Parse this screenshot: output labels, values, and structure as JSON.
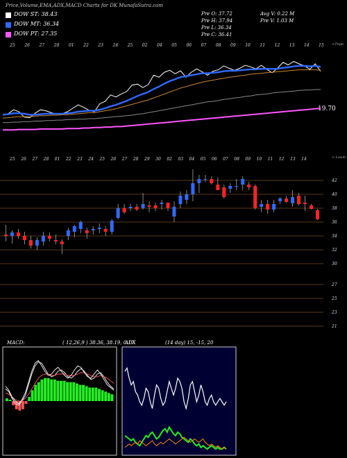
{
  "header": {
    "title": "Price,Volume,EMA,ADX,MACD Charts for DK MunafaSutra.com",
    "legend": [
      {
        "label": "DOW ST: 38.43",
        "color": "#ffffff"
      },
      {
        "label": "DOW MT: 36.34",
        "color": "#2f6bff"
      },
      {
        "label": "DOW PT: 27.35",
        "color": "#ff55ff"
      }
    ],
    "ohlc": {
      "open": "Pre  O: 37.72",
      "high": "Pre  H: 37.94",
      "low": "Pre  L: 36.34",
      "close": "Pre  C: 36.41"
    },
    "volume": {
      "avg": "Avg V: 0.22  M",
      "pre": "Pre  V: 1.03  M"
    }
  },
  "colors": {
    "up": "#2f6bff",
    "down": "#ff2222",
    "ema_short": "#ffffff",
    "ema_mid": "#2f6bff",
    "ema_long": "#ff55ff",
    "grid": "#7a4a1a",
    "adx": "#ffffff",
    "di_plus": "#22ee22",
    "di_minus": "#ff8800",
    "macd_hist": "#22ee22",
    "signal": "#ff5555"
  },
  "chart_data": [
    {
      "type": "line",
      "name": "ema-panel",
      "corner_label": "<Tnpe",
      "date_labels": [
        "25",
        "26",
        "27",
        "28",
        "01",
        "22",
        "23",
        "24",
        "25",
        "02",
        "04",
        "05",
        "06",
        "07",
        "08",
        "09",
        "10",
        "11",
        "12",
        "13",
        "14",
        "15"
      ],
      "value_label": "19.70",
      "series": [
        {
          "name": "price",
          "values": [
            22.5,
            22.8,
            23.6,
            23.2,
            22.1,
            22.0,
            22.9,
            23.6,
            23.4,
            23.0,
            22.7,
            22.8,
            23.2,
            23.9,
            24.6,
            24.1,
            23.5,
            23.2,
            24.8,
            25.3,
            26.6,
            26.2,
            26.8,
            27.3,
            28.6,
            28.8,
            28.1,
            28.7,
            30.6,
            30.2,
            31.2,
            31.6,
            30.9,
            31.5,
            30.2,
            31.2,
            31.9,
            31.3,
            30.6,
            31.4,
            31.7,
            32.5,
            32.0,
            31.6,
            32.0,
            32.6,
            32.3,
            31.9,
            32.6,
            31.8,
            31.1,
            32.0,
            33.2,
            32.7,
            33.4,
            32.9,
            32.5,
            31.8,
            32.9,
            31.4
          ]
        },
        {
          "name": "ema-short",
          "values": [
            22.6,
            22.7,
            22.9,
            22.9,
            22.8,
            22.6,
            22.6,
            22.7,
            22.8,
            22.8,
            22.8,
            22.8,
            22.9,
            23.0,
            23.2,
            23.3,
            23.4,
            23.4,
            23.6,
            23.9,
            24.3,
            24.6,
            25.0,
            25.4,
            25.9,
            26.4,
            26.8,
            27.2,
            27.8,
            28.3,
            28.9,
            29.4,
            29.8,
            30.2,
            30.4,
            30.6,
            30.8,
            31.0,
            31.0,
            31.1,
            31.2,
            31.4,
            31.5,
            31.5,
            31.6,
            31.7,
            31.8,
            31.8,
            31.9,
            31.9,
            31.9,
            31.9,
            32.1,
            32.2,
            32.4,
            32.5,
            32.5,
            32.4,
            32.5,
            32.3
          ]
        },
        {
          "name": "ema-mid",
          "values": [
            21.9,
            22.0,
            22.1,
            22.2,
            22.2,
            22.2,
            22.3,
            22.4,
            22.4,
            22.5,
            22.5,
            22.6,
            22.6,
            22.7,
            22.8,
            22.9,
            23.0,
            23.0,
            23.2,
            23.4,
            23.6,
            23.8,
            24.1,
            24.4,
            24.7,
            25.0,
            25.3,
            25.6,
            26.0,
            26.4,
            26.8,
            27.2,
            27.6,
            28.0,
            28.3,
            28.6,
            28.9,
            29.2,
            29.4,
            29.6,
            29.8,
            30.0,
            30.2,
            30.3,
            30.5,
            30.6,
            30.8,
            30.9,
            31.0,
            31.1,
            31.2,
            31.3,
            31.4,
            31.5,
            31.6,
            31.7,
            31.7,
            31.7,
            31.7,
            31.6
          ]
        },
        {
          "name": "ema-long",
          "values": [
            21.0,
            21.0,
            21.1,
            21.1,
            21.2,
            21.2,
            21.3,
            21.3,
            21.4,
            21.4,
            21.5,
            21.5,
            21.6,
            21.6,
            21.7,
            21.7,
            21.8,
            21.8,
            21.9,
            22.0,
            22.1,
            22.2,
            22.3,
            22.4,
            22.5,
            22.7,
            22.8,
            23.0,
            23.2,
            23.4,
            23.6,
            23.8,
            24.0,
            24.2,
            24.4,
            24.6,
            24.8,
            25.0,
            25.2,
            25.3,
            25.5,
            25.7,
            25.8,
            26.0,
            26.1,
            26.3,
            26.4,
            26.6,
            26.7,
            26.8,
            27.0,
            27.1,
            27.2,
            27.3,
            27.4,
            27.5,
            27.6,
            27.6,
            27.7,
            27.7
          ]
        },
        {
          "name": "ema-pt",
          "values": [
            19.5,
            19.5,
            19.5,
            19.6,
            19.6,
            19.6,
            19.6,
            19.7,
            19.7,
            19.7,
            19.7,
            19.7,
            19.8,
            19.8,
            19.8,
            19.9,
            19.9,
            20.0,
            20.0,
            20.1,
            20.1,
            20.2,
            20.2,
            20.3,
            20.4,
            20.5,
            20.6,
            20.7,
            20.8,
            20.9,
            21.0,
            21.1,
            21.2,
            21.3,
            21.4,
            21.5,
            21.6,
            21.7,
            21.8,
            21.9,
            22.0,
            22.1,
            22.2,
            22.3,
            22.4,
            22.5,
            22.6,
            22.7,
            22.8,
            22.9,
            23.0,
            23.1,
            23.2,
            23.3,
            23.4,
            23.5,
            23.6,
            23.7,
            23.8,
            23.9
          ]
        }
      ],
      "ylim": [
        18,
        36
      ]
    },
    {
      "type": "candlestick",
      "name": "price-panel",
      "corner_label": "< Loum",
      "date_labels": [
        "25",
        "26",
        "27",
        "28",
        "01",
        "22",
        "23",
        "24",
        "25",
        "26",
        "27",
        "28",
        "29",
        "30",
        "02",
        "03",
        "04",
        "05",
        "06",
        "07",
        "08",
        "09",
        "10",
        "11",
        "12",
        "13",
        "14"
      ],
      "y_ticks": [
        42,
        40,
        38,
        36,
        34,
        32,
        30,
        27,
        25,
        23,
        21
      ],
      "ylim": [
        20,
        45
      ],
      "candles": [
        {
          "o": 34.2,
          "h": 35.6,
          "l": 33.2,
          "c": 34.0
        },
        {
          "o": 34.0,
          "h": 34.8,
          "l": 32.9,
          "c": 34.5
        },
        {
          "o": 34.5,
          "h": 35.0,
          "l": 33.6,
          "c": 34.0
        },
        {
          "o": 34.0,
          "h": 34.6,
          "l": 32.8,
          "c": 33.4
        },
        {
          "o": 33.4,
          "h": 34.0,
          "l": 32.2,
          "c": 32.6
        },
        {
          "o": 32.6,
          "h": 33.8,
          "l": 32.0,
          "c": 33.4
        },
        {
          "o": 33.2,
          "h": 34.6,
          "l": 32.6,
          "c": 34.0
        },
        {
          "o": 34.0,
          "h": 34.5,
          "l": 33.2,
          "c": 33.6
        },
        {
          "o": 33.4,
          "h": 34.2,
          "l": 32.8,
          "c": 33.2
        },
        {
          "o": 33.2,
          "h": 33.5,
          "l": 31.4,
          "c": 32.8
        },
        {
          "o": 34.0,
          "h": 35.2,
          "l": 33.4,
          "c": 34.8
        },
        {
          "o": 34.6,
          "h": 35.6,
          "l": 33.8,
          "c": 35.4
        },
        {
          "o": 35.0,
          "h": 36.2,
          "l": 34.4,
          "c": 36.0
        },
        {
          "o": 34.8,
          "h": 35.2,
          "l": 33.6,
          "c": 34.4
        },
        {
          "o": 34.8,
          "h": 35.4,
          "l": 34.2,
          "c": 35.0
        },
        {
          "o": 35.0,
          "h": 35.8,
          "l": 34.4,
          "c": 35.2
        },
        {
          "o": 35.0,
          "h": 35.4,
          "l": 34.0,
          "c": 34.6
        },
        {
          "o": 34.6,
          "h": 36.4,
          "l": 34.2,
          "c": 36.2
        },
        {
          "o": 36.6,
          "h": 38.6,
          "l": 36.4,
          "c": 38.0
        },
        {
          "o": 38.0,
          "h": 38.6,
          "l": 37.2,
          "c": 37.4
        },
        {
          "o": 38.0,
          "h": 38.6,
          "l": 37.6,
          "c": 38.2
        },
        {
          "o": 38.2,
          "h": 38.6,
          "l": 37.6,
          "c": 37.8
        },
        {
          "o": 38.0,
          "h": 40.2,
          "l": 37.8,
          "c": 38.6
        },
        {
          "o": 38.4,
          "h": 39.0,
          "l": 37.4,
          "c": 38.2
        },
        {
          "o": 38.4,
          "h": 38.8,
          "l": 37.6,
          "c": 38.0
        },
        {
          "o": 38.6,
          "h": 39.2,
          "l": 37.8,
          "c": 38.8
        },
        {
          "o": 38.8,
          "h": 38.8,
          "l": 37.6,
          "c": 38.0
        },
        {
          "o": 36.8,
          "h": 39.0,
          "l": 36.0,
          "c": 38.2
        },
        {
          "o": 38.6,
          "h": 40.4,
          "l": 38.0,
          "c": 39.8
        },
        {
          "o": 39.2,
          "h": 40.6,
          "l": 38.6,
          "c": 40.0
        },
        {
          "o": 40.0,
          "h": 43.6,
          "l": 39.0,
          "c": 41.6
        },
        {
          "o": 41.6,
          "h": 42.8,
          "l": 40.2,
          "c": 42.2
        },
        {
          "o": 42.2,
          "h": 42.8,
          "l": 41.8,
          "c": 42.2
        },
        {
          "o": 42.2,
          "h": 42.6,
          "l": 41.4,
          "c": 41.6
        },
        {
          "o": 41.4,
          "h": 42.4,
          "l": 40.6,
          "c": 40.6
        },
        {
          "o": 41.0,
          "h": 41.4,
          "l": 39.4,
          "c": 39.6
        },
        {
          "o": 40.8,
          "h": 41.6,
          "l": 40.2,
          "c": 41.2
        },
        {
          "o": 41.2,
          "h": 42.2,
          "l": 40.6,
          "c": 41.2
        },
        {
          "o": 41.4,
          "h": 42.6,
          "l": 40.6,
          "c": 42.2
        },
        {
          "o": 41.4,
          "h": 41.8,
          "l": 40.6,
          "c": 41.0
        },
        {
          "o": 41.2,
          "h": 41.4,
          "l": 37.8,
          "c": 38.0
        },
        {
          "o": 38.2,
          "h": 39.2,
          "l": 37.4,
          "c": 38.6
        },
        {
          "o": 38.6,
          "h": 39.2,
          "l": 37.2,
          "c": 37.8
        },
        {
          "o": 37.8,
          "h": 39.2,
          "l": 37.4,
          "c": 38.6
        },
        {
          "o": 39.0,
          "h": 39.6,
          "l": 38.6,
          "c": 39.4
        },
        {
          "o": 39.4,
          "h": 39.8,
          "l": 38.8,
          "c": 38.9
        },
        {
          "o": 38.7,
          "h": 40.6,
          "l": 38.2,
          "c": 39.6
        },
        {
          "o": 39.8,
          "h": 40.2,
          "l": 38.4,
          "c": 38.6
        },
        {
          "o": 38.8,
          "h": 39.8,
          "l": 37.6,
          "c": 38.6
        },
        {
          "o": 38.4,
          "h": 38.6,
          "l": 37.8,
          "c": 37.9
        },
        {
          "o": 37.7,
          "h": 37.9,
          "l": 36.3,
          "c": 36.4
        }
      ]
    },
    {
      "type": "line",
      "name": "macd-panel",
      "label": "MACD:",
      "params": "( 12,26,9 ) 38.36, 38.19, 0.17",
      "ylim": [
        -4,
        4
      ],
      "histogram": [
        0.2,
        0.1,
        -0.3,
        -0.6,
        -0.7,
        -0.6,
        -0.2,
        0.3,
        0.8,
        1.2,
        1.4,
        1.6,
        1.7,
        1.7,
        1.6,
        1.6,
        1.5,
        1.5,
        1.5,
        1.4,
        1.4,
        1.4,
        1.3,
        1.2,
        1.2,
        1.1,
        1.0,
        1.0,
        1.0,
        0.9,
        0.8,
        0.7,
        0.6,
        0.5
      ],
      "series": [
        {
          "name": "macd",
          "values": [
            0.9,
            0.7,
            0.2,
            -0.2,
            -0.3,
            0.0,
            0.4,
            1.2,
            2.0,
            2.6,
            2.9,
            2.8,
            2.4,
            2.0,
            1.8,
            1.9,
            2.2,
            2.3,
            2.1,
            1.8,
            1.7,
            1.9,
            2.2,
            2.4,
            2.2,
            1.9,
            1.6,
            1.7,
            2.0,
            2.1,
            1.8,
            1.4,
            1.1,
            0.9
          ]
        },
        {
          "name": "signal",
          "values": [
            0.6,
            0.5,
            0.3,
            0.1,
            0.0,
            0.0,
            0.2,
            0.5,
            0.9,
            1.3,
            1.7,
            1.9,
            2.0,
            2.0,
            1.9,
            1.9,
            2.0,
            2.0,
            2.0,
            1.9,
            1.9,
            1.9,
            2.0,
            2.1,
            2.1,
            2.0,
            1.9,
            1.8,
            1.8,
            1.9,
            1.8,
            1.7,
            1.5,
            1.3
          ]
        },
        {
          "name": "macd-b",
          "values": [
            1.1,
            0.8,
            0.3,
            0.0,
            -0.2,
            0.1,
            0.6,
            1.4,
            2.2,
            2.8,
            3.0,
            2.6,
            2.2,
            1.9,
            2.0,
            2.3,
            2.5,
            2.2,
            1.9,
            1.7,
            1.9,
            2.3,
            2.6,
            2.5,
            2.1,
            1.8,
            1.7,
            2.0,
            2.3,
            2.0,
            1.6,
            1.2,
            1.0,
            0.8
          ]
        }
      ]
    },
    {
      "type": "line",
      "name": "adx-panel",
      "label": "ADX",
      "params": "(14  day) 15, -15, 20",
      "ylim": [
        0,
        60
      ],
      "series": [
        {
          "name": "adx",
          "values": [
            48,
            50,
            44,
            40,
            42,
            36,
            34,
            30,
            28,
            32,
            38,
            36,
            30,
            26,
            34,
            40,
            38,
            32,
            28,
            30,
            36,
            42,
            38,
            34,
            38,
            44,
            42,
            38,
            30,
            26,
            32,
            40,
            42,
            36,
            30,
            34,
            40,
            36,
            30,
            28,
            32,
            34,
            30,
            28,
            30,
            32,
            30,
            28,
            30
          ]
        },
        {
          "name": "di-plus",
          "values": [
            10,
            9,
            8,
            7,
            8,
            6,
            5,
            4,
            6,
            8,
            10,
            9,
            11,
            12,
            10,
            8,
            9,
            11,
            13,
            14,
            12,
            15,
            13,
            11,
            10,
            12,
            11,
            9,
            8,
            7,
            6,
            8,
            7,
            5,
            4,
            5,
            3,
            4,
            3,
            2,
            3,
            4,
            3,
            2,
            3,
            2,
            2,
            3,
            2
          ]
        },
        {
          "name": "di-minus",
          "values": [
            3,
            4,
            5,
            4,
            5,
            6,
            5,
            7,
            6,
            5,
            4,
            5,
            6,
            7,
            5,
            4,
            5,
            6,
            5,
            6,
            7,
            8,
            7,
            6,
            5,
            6,
            7,
            8,
            9,
            8,
            7,
            6,
            7,
            8,
            7,
            6,
            7,
            8,
            6,
            5,
            4,
            5,
            4,
            3,
            4,
            3,
            2,
            3,
            2
          ]
        }
      ]
    }
  ]
}
